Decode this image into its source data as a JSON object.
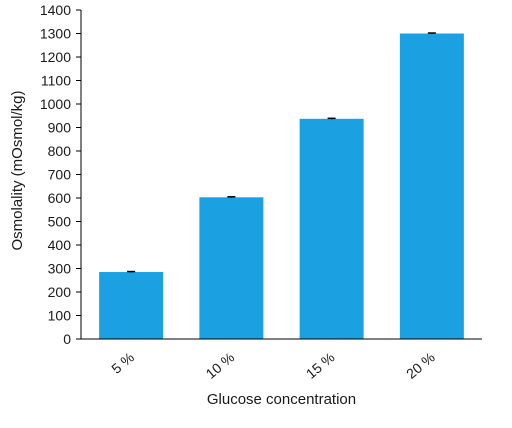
{
  "chart_data": {
    "type": "bar",
    "categories": [
      "5 %",
      "10 %",
      "15 %",
      "20 %"
    ],
    "values": [
      285,
      603,
      937,
      1300
    ],
    "errors": [
      2,
      2,
      2,
      2
    ],
    "title": "",
    "xlabel": "Glucose concentration",
    "ylabel": "Osmolality (mOsmol/kg)",
    "ylim": [
      0,
      1400
    ],
    "yticks": [
      0,
      100,
      200,
      300,
      400,
      500,
      600,
      700,
      800,
      900,
      1000,
      1100,
      1200,
      1300,
      1400
    ],
    "grid": false,
    "legend": "none",
    "bar_color": "#1ba1e2",
    "error_color": "#000000"
  }
}
